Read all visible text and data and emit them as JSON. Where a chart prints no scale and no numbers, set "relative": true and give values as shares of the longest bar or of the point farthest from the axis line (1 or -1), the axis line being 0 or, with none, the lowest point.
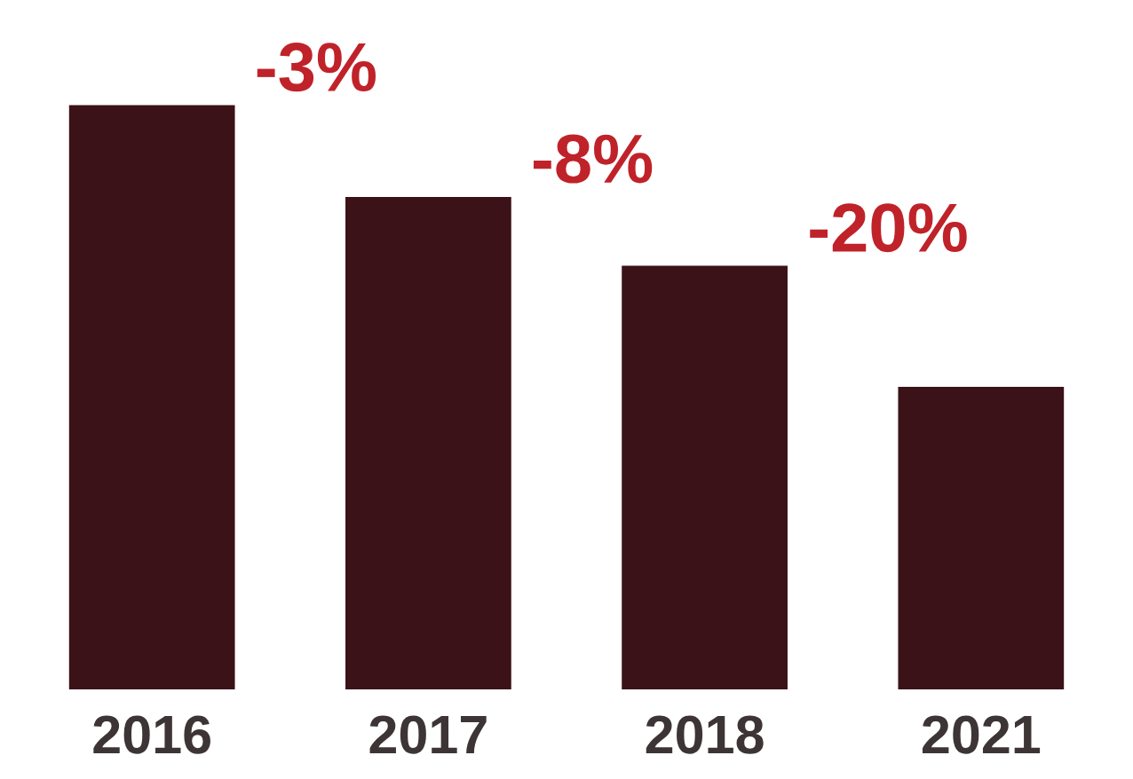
{
  "chart_data": {
    "type": "bar",
    "relative": true,
    "categories": [
      "2016",
      "2017",
      "2018",
      "2021"
    ],
    "values": [
      1,
      0.843,
      0.725,
      0.518
    ],
    "color": "#3b1218",
    "annotations": [
      {
        "text": "-3%",
        "x": "2016",
        "y": 1
      },
      {
        "text": "-8%",
        "x": "2017",
        "y": 0.843
      },
      {
        "text": "-20%",
        "x": "2018",
        "y": 0.725
      }
    ],
    "grid": false,
    "legend": false
  }
}
